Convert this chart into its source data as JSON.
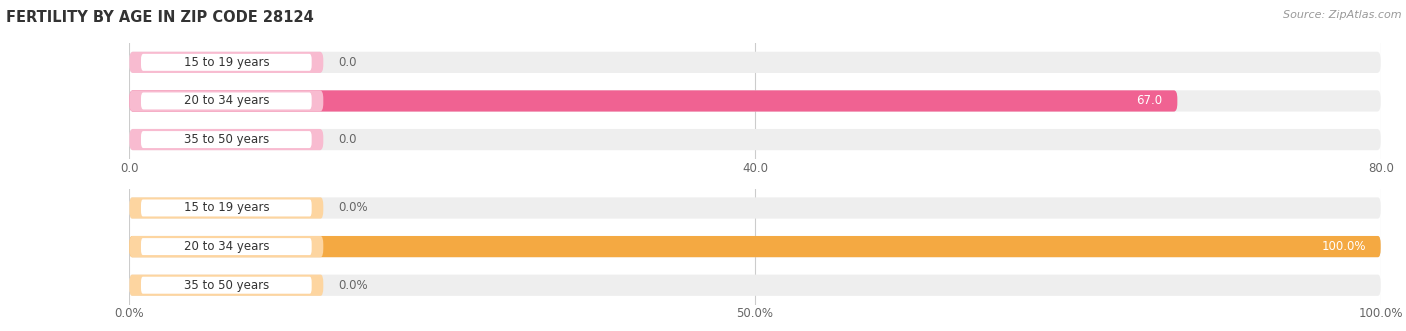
{
  "title": "FERTILITY BY AGE IN ZIP CODE 28124",
  "source_text": "Source: ZipAtlas.com",
  "chart1": {
    "categories": [
      "15 to 19 years",
      "20 to 34 years",
      "35 to 50 years"
    ],
    "values": [
      0.0,
      67.0,
      0.0
    ],
    "xlim": [
      0,
      80.0
    ],
    "xticks": [
      0.0,
      40.0,
      80.0
    ],
    "xtick_labels": [
      "0.0",
      "40.0",
      "80.0"
    ],
    "bar_color": "#f06292",
    "bar_bg_color": "#eeeeee",
    "label_stub_color": "#f8bbd0",
    "value_label_inside_color": "#ffffff",
    "value_label_outside_color": "#666666"
  },
  "chart2": {
    "categories": [
      "15 to 19 years",
      "20 to 34 years",
      "35 to 50 years"
    ],
    "values": [
      0.0,
      100.0,
      0.0
    ],
    "xlim": [
      0,
      100.0
    ],
    "xticks": [
      0.0,
      50.0,
      100.0
    ],
    "xtick_labels": [
      "0.0%",
      "50.0%",
      "100.0%"
    ],
    "bar_color": "#f4a942",
    "bar_bg_color": "#eeeeee",
    "label_stub_color": "#fdd5a0",
    "value_label_inside_color": "#ffffff",
    "value_label_outside_color": "#666666"
  },
  "bg_color": "#ffffff",
  "label_bg_color": "#ffffff",
  "label_text_color": "#333333",
  "bar_height": 0.55,
  "font_size": 8.5,
  "title_font_size": 10.5
}
